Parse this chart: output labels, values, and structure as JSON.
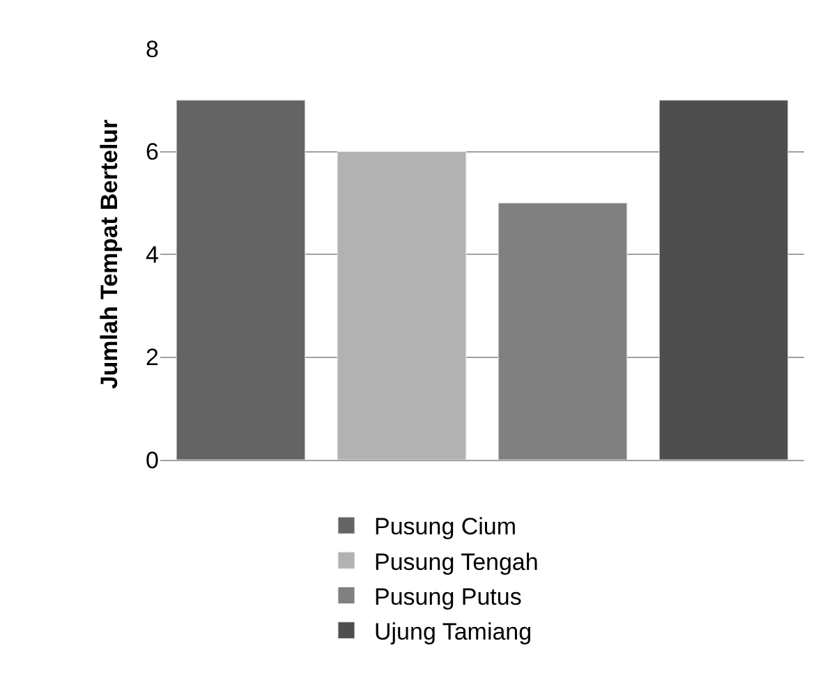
{
  "chart_data": {
    "type": "bar",
    "ylabel": "Jumlah Tempat Bertelur",
    "categories": [
      null,
      null,
      null,
      null
    ],
    "series": [
      {
        "name": "Pusung Cium",
        "color": "#646464",
        "values": [
          7,
          null,
          null,
          null
        ]
      },
      {
        "name": "Pusung Tengah",
        "color": "#b2b2b2",
        "values": [
          null,
          6,
          null,
          null
        ]
      },
      {
        "name": "Pusung Putus",
        "color": "#808080",
        "values": [
          null,
          null,
          5,
          null
        ]
      },
      {
        "name": "Ujung Tamiang",
        "color": "#4e4e4e",
        "values": [
          null,
          null,
          null,
          7
        ]
      }
    ],
    "ylim": [
      0,
      8
    ],
    "yticks": [
      0,
      2,
      4,
      6,
      8
    ],
    "grid": "y",
    "legend": "bottom"
  }
}
